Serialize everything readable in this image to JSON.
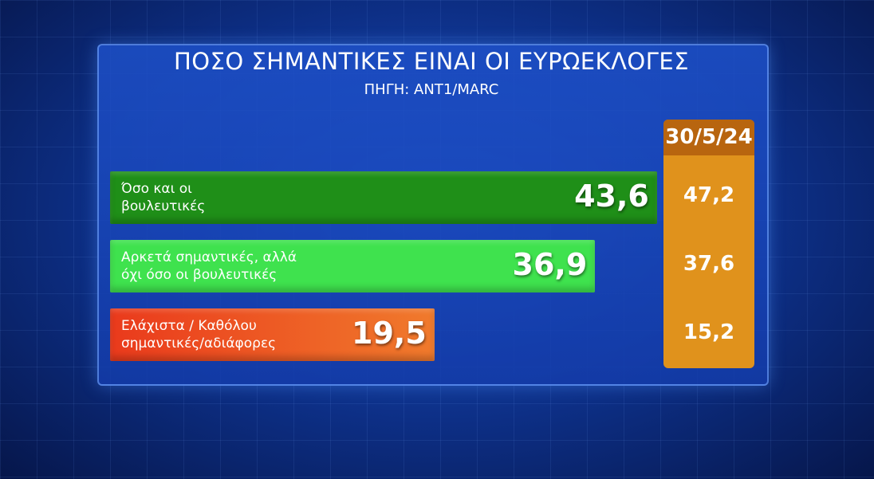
{
  "chart_data": {
    "type": "bar",
    "orientation": "horizontal",
    "title": "ΠΟΣΟ ΣΗΜΑΝΤΙΚΕΣ ΕΙΝΑΙ ΟΙ ΕΥΡΩΕΚΛΟΓΕΣ",
    "subtitle": "ΠΗΓΗ: ΑΝΤ1/MARC",
    "categories": [
      "Όσο και οι\nβουλευτικές",
      "Αρκετά σημαντικές, αλλά\nόχι όσο οι βουλευτικές",
      "Ελάχιστα / Καθόλου\nσημαντικές/αδιάφορες"
    ],
    "values": [
      43.6,
      36.9,
      19.5
    ],
    "value_labels": [
      "43,6",
      "36,9",
      "19,5"
    ],
    "colors": [
      "#1f8f18",
      "#3fe24e",
      "#ea3a1c"
    ],
    "comparison": {
      "name": "30/5/24",
      "color": "#e0921c",
      "header_color": "#b8650f",
      "values": [
        47.2,
        37.6,
        15.2
      ],
      "value_labels": [
        "47,2",
        "37,6",
        "15,2"
      ]
    }
  }
}
